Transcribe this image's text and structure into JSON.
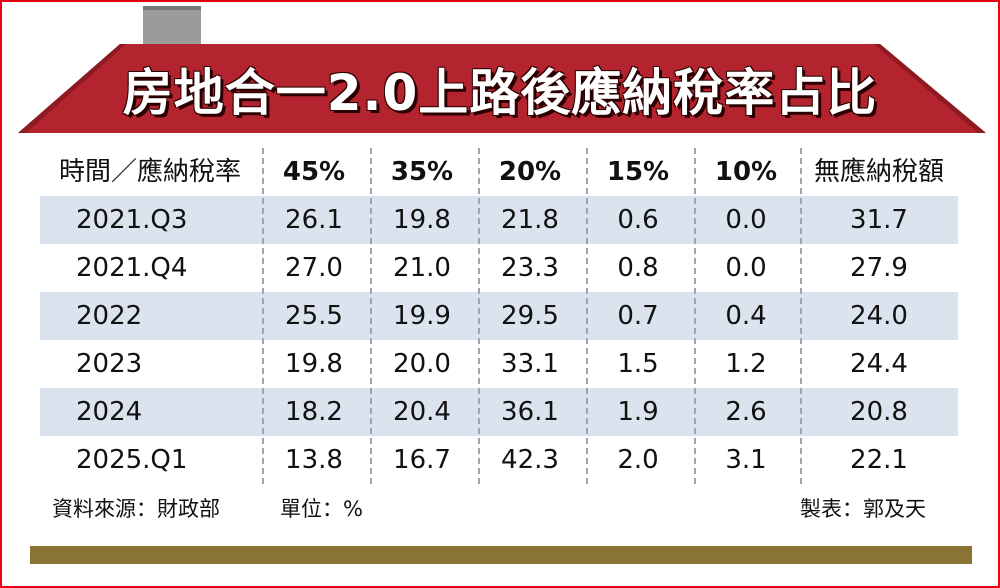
{
  "title": "房地合一2.0上路後應納稅率占比",
  "colors": {
    "frame": "#e60012",
    "roof": "#b3242e",
    "row_shade": "#dbe4ee",
    "base": "#8a7434"
  },
  "chart_data": {
    "type": "table",
    "title": "房地合一2.0上路後應納稅率占比",
    "columns": [
      "時間／應納稅率",
      "45%",
      "35%",
      "20%",
      "15%",
      "10%",
      "無應納稅額"
    ],
    "rows": [
      {
        "period": "2021.Q3",
        "values": [
          "26.1",
          "19.8",
          "21.8",
          "0.6",
          "0.0",
          "31.7"
        ]
      },
      {
        "period": "2021.Q4",
        "values": [
          "27.0",
          "21.0",
          "23.3",
          "0.8",
          "0.0",
          "27.9"
        ]
      },
      {
        "period": "2022",
        "values": [
          "25.5",
          "19.9",
          "29.5",
          "0.7",
          "0.4",
          "24.0"
        ]
      },
      {
        "period": "2023",
        "values": [
          "19.8",
          "20.0",
          "33.1",
          "1.5",
          "1.2",
          "24.4"
        ]
      },
      {
        "period": "2024",
        "values": [
          "18.2",
          "20.4",
          "36.1",
          "1.9",
          "2.6",
          "20.8"
        ]
      },
      {
        "period": "2025.Q1",
        "values": [
          "13.8",
          "16.7",
          "42.3",
          "2.0",
          "3.1",
          "22.1"
        ]
      }
    ]
  },
  "footer": {
    "source": "資料來源：財政部",
    "unit": "單位：%",
    "credit": "製表：郭及天"
  }
}
